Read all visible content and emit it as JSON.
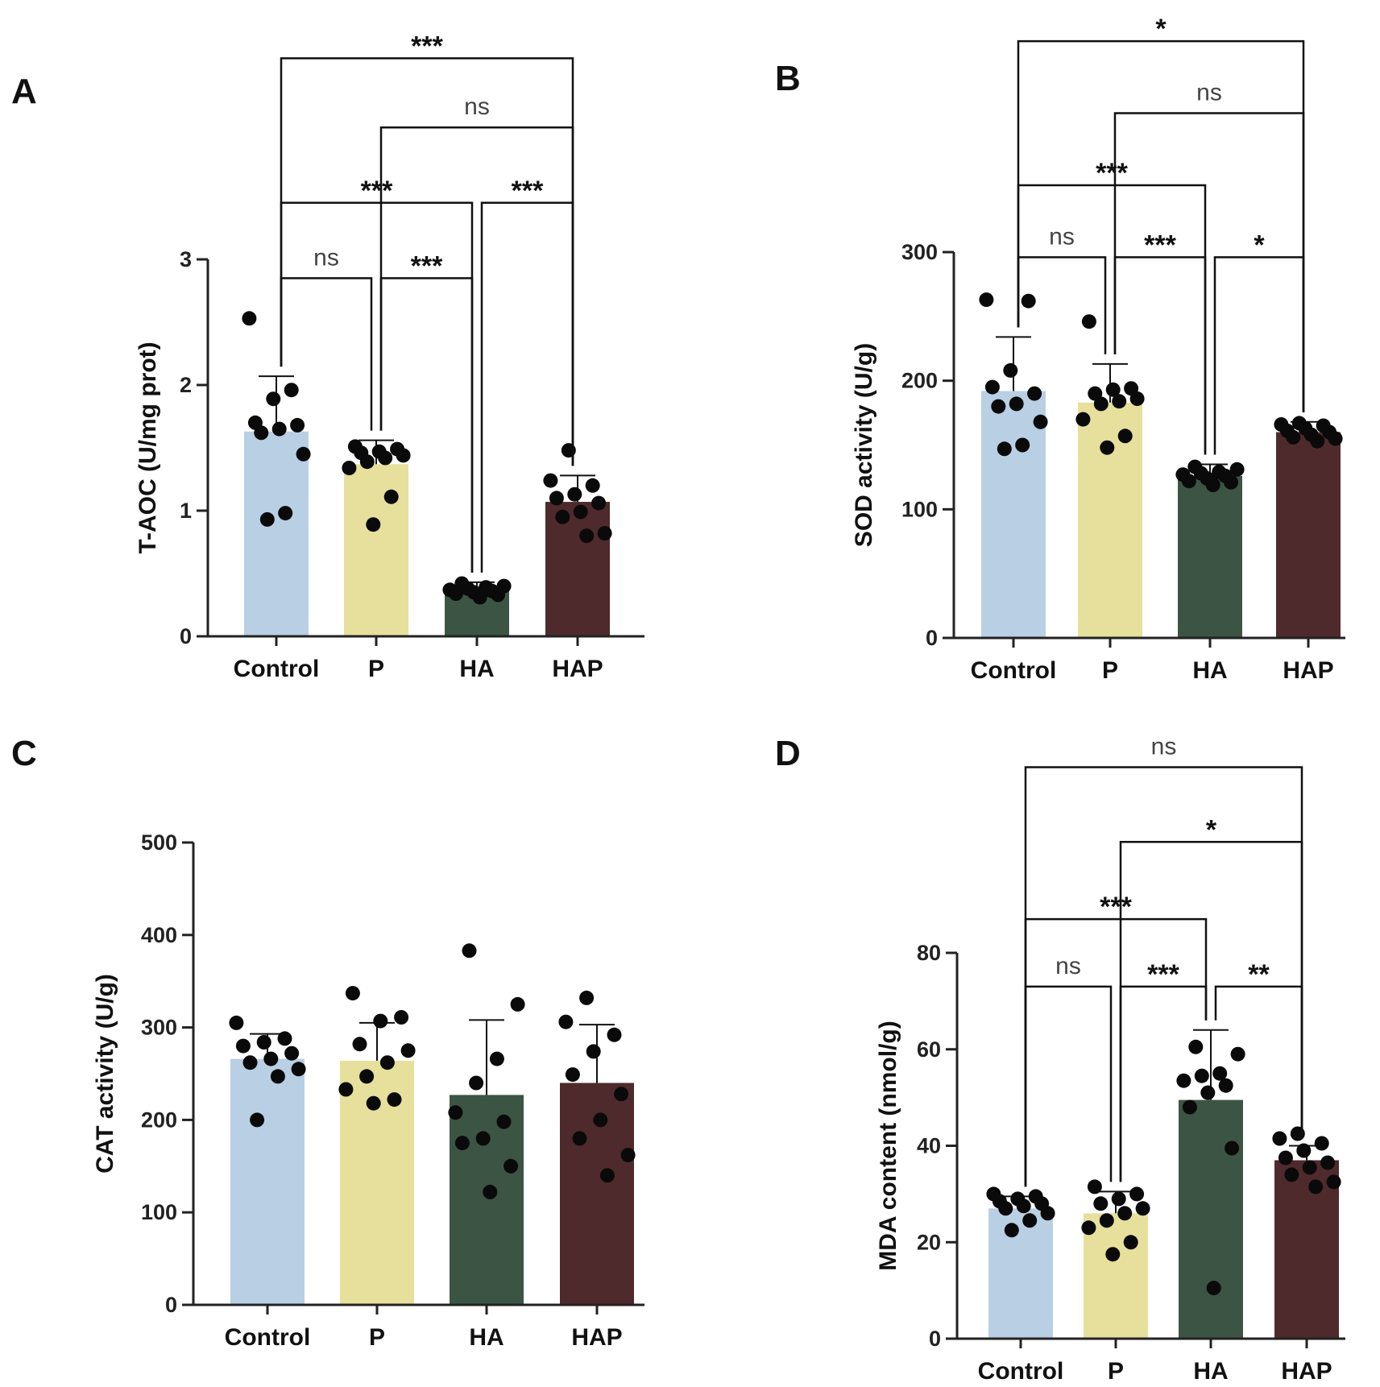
{
  "colors": {
    "Control": "#b9cfe4",
    "P": "#e6e09c",
    "HA": "#3c5444",
    "HAP": "#4f2a2c",
    "axis": "#222222",
    "point": "#0a0a0a",
    "bracket": "#111111"
  },
  "chart_data": [
    {
      "panel": "A",
      "type": "bar",
      "ylabel": "T-AOC (U/mg prot)",
      "categories": [
        "Control",
        "P",
        "HA",
        "HAP"
      ],
      "ylim": [
        0,
        3
      ],
      "yticks": [
        "0",
        "1",
        "2",
        "3"
      ],
      "yticks_values": [
        0,
        1,
        2,
        3
      ],
      "values": [
        1.63,
        1.37,
        0.37,
        1.07
      ],
      "error_upper": [
        2.07,
        1.56,
        0.43,
        1.28
      ],
      "points": [
        [
          2.53,
          1.96,
          1.89,
          1.7,
          1.68,
          1.65,
          1.62,
          1.45,
          0.98,
          0.93
        ],
        [
          1.51,
          1.49,
          1.47,
          1.46,
          1.44,
          1.42,
          1.39,
          1.34,
          1.11,
          0.89
        ],
        [
          0.42,
          0.4,
          0.39,
          0.38,
          0.37,
          0.36,
          0.35,
          0.34,
          0.33,
          0.31
        ],
        [
          1.48,
          1.24,
          1.2,
          1.13,
          1.1,
          1.06,
          0.99,
          0.95,
          0.82,
          0.8
        ]
      ],
      "comparisons": [
        {
          "from": 0,
          "to": 1,
          "label": "ns",
          "y": 2.85
        },
        {
          "from": 1,
          "to": 2,
          "label": "***",
          "y": 2.85
        },
        {
          "from": 0,
          "to": 2,
          "label": "***",
          "y": 3.45
        },
        {
          "from": 2,
          "to": 3,
          "label": "***",
          "y": 3.45
        },
        {
          "from": 1,
          "to": 3,
          "label": "ns",
          "y": 4.05
        },
        {
          "from": 0,
          "to": 3,
          "label": "***",
          "y": 4.6
        }
      ]
    },
    {
      "panel": "B",
      "type": "bar",
      "ylabel": "SOD activity (U/g)",
      "categories": [
        "Control",
        "P",
        "HA",
        "HAP"
      ],
      "ylim": [
        0,
        300
      ],
      "yticks": [
        "0",
        "100",
        "200",
        "300"
      ],
      "yticks_values": [
        0,
        100,
        200,
        300
      ],
      "values": [
        192,
        183,
        126,
        160
      ],
      "error_upper": [
        234,
        213,
        135,
        168
      ],
      "points": [
        [
          263,
          262,
          208,
          195,
          190,
          182,
          180,
          168,
          150,
          147
        ],
        [
          246,
          194,
          193,
          190,
          186,
          184,
          182,
          170,
          157,
          148
        ],
        [
          133,
          131,
          129,
          128,
          127,
          126,
          124,
          122,
          121,
          119
        ],
        [
          167,
          166,
          165,
          163,
          161,
          160,
          158,
          156,
          155,
          153
        ]
      ],
      "comparisons": [
        {
          "from": 0,
          "to": 1,
          "label": "ns",
          "y": 296
        },
        {
          "from": 1,
          "to": 2,
          "label": "***",
          "y": 296
        },
        {
          "from": 2,
          "to": 3,
          "label": "*",
          "y": 296
        },
        {
          "from": 0,
          "to": 2,
          "label": "***",
          "y": 352
        },
        {
          "from": 1,
          "to": 3,
          "label": "ns",
          "y": 408
        },
        {
          "from": 0,
          "to": 3,
          "label": "*",
          "y": 464
        }
      ]
    },
    {
      "panel": "C",
      "type": "bar",
      "ylabel": "CAT activity (U/g)",
      "categories": [
        "Control",
        "P",
        "HA",
        "HAP"
      ],
      "ylim": [
        0,
        500
      ],
      "yticks": [
        "0",
        "100",
        "200",
        "300",
        "400",
        "500"
      ],
      "yticks_values": [
        0,
        100,
        200,
        300,
        400,
        500
      ],
      "values": [
        266,
        264,
        227,
        240
      ],
      "error_upper": [
        293,
        305,
        308,
        303
      ],
      "points": [
        [
          305,
          288,
          284,
          280,
          272,
          266,
          262,
          255,
          247,
          200
        ],
        [
          337,
          311,
          307,
          282,
          275,
          262,
          247,
          233,
          222,
          218
        ],
        [
          383,
          325,
          266,
          240,
          208,
          198,
          180,
          175,
          150,
          122
        ],
        [
          332,
          306,
          292,
          274,
          249,
          228,
          200,
          180,
          162,
          140
        ]
      ],
      "comparisons": []
    },
    {
      "panel": "D",
      "type": "bar",
      "ylabel": "MDA content (nmol/g)",
      "categories": [
        "Control",
        "P",
        "HA",
        "HAP"
      ],
      "ylim": [
        0,
        80
      ],
      "yticks": [
        "0",
        "20",
        "40",
        "60",
        "80"
      ],
      "yticks_values": [
        0,
        20,
        40,
        60,
        80
      ],
      "values": [
        27,
        26,
        49.5,
        37
      ],
      "error_upper": [
        29.5,
        30.5,
        64,
        40
      ],
      "points": [
        [
          30,
          29.5,
          29,
          28.5,
          28,
          27.5,
          27,
          26,
          24.5,
          22.5
        ],
        [
          31.5,
          30,
          29,
          28,
          27,
          26,
          24.5,
          23,
          20,
          17.5
        ],
        [
          60.5,
          59,
          55,
          54.5,
          53.5,
          52.5,
          51,
          48,
          39.5,
          10.5
        ],
        [
          42.5,
          41.5,
          40.5,
          39,
          37.5,
          36.5,
          35.5,
          34,
          32.5,
          31.5
        ]
      ],
      "comparisons": [
        {
          "from": 0,
          "to": 1,
          "label": "ns",
          "y": 73
        },
        {
          "from": 1,
          "to": 2,
          "label": "***",
          "y": 73
        },
        {
          "from": 2,
          "to": 3,
          "label": "**",
          "y": 73
        },
        {
          "from": 0,
          "to": 2,
          "label": "***",
          "y": 87
        },
        {
          "from": 1,
          "to": 3,
          "label": "*",
          "y": 103
        },
        {
          "from": 0,
          "to": 3,
          "label": "ns",
          "y": 118.5
        }
      ]
    }
  ]
}
